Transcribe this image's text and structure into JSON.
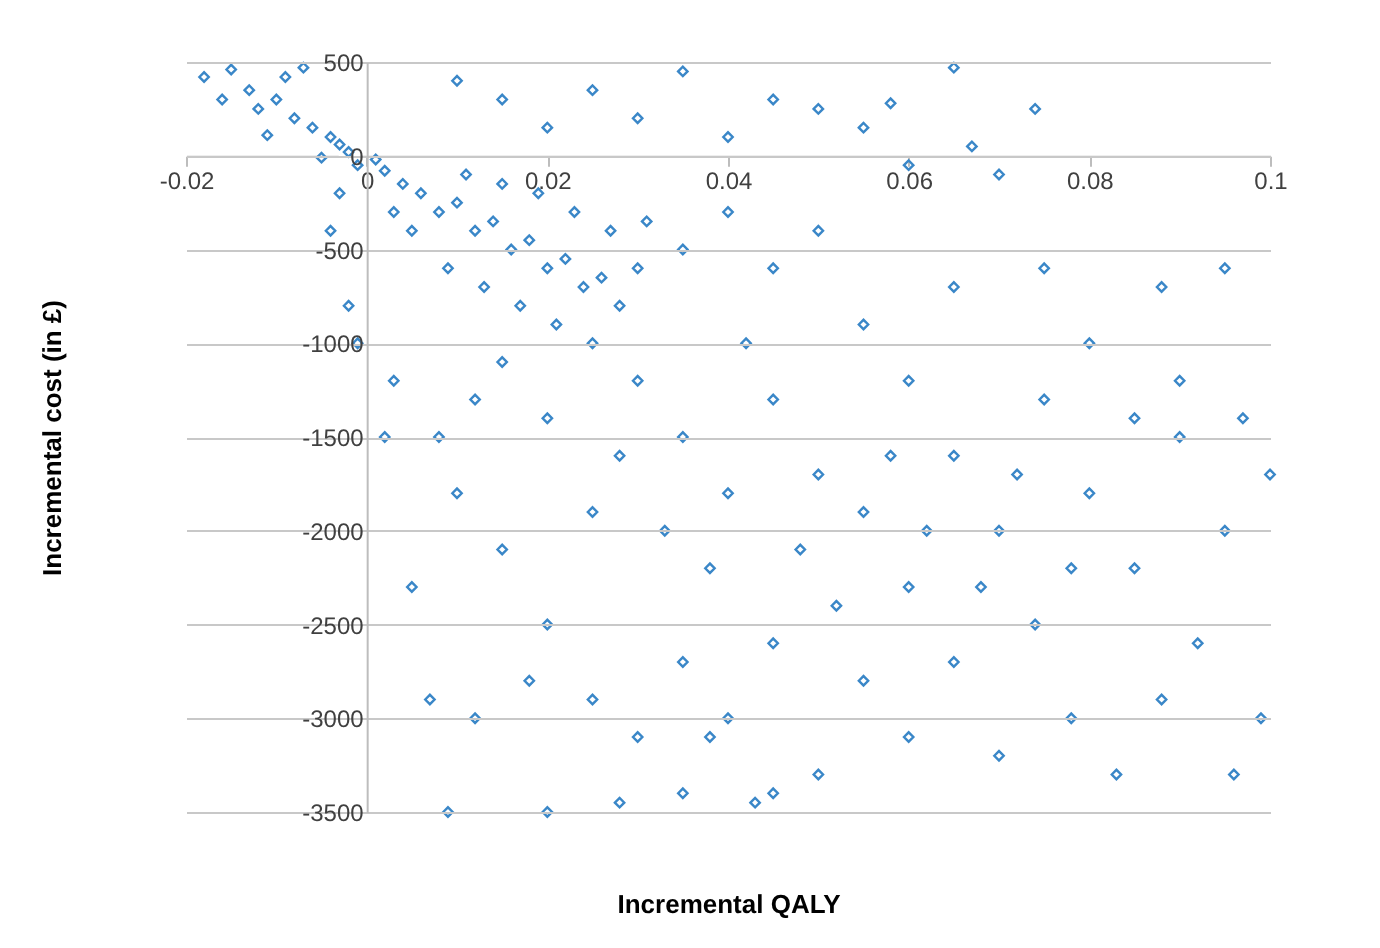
{
  "chart_data": {
    "type": "scatter",
    "xlabel": "Incremental QALY",
    "ylabel": "Incremental cost (in £)",
    "xlim": [
      -0.02,
      0.1
    ],
    "ylim": [
      -3500,
      500
    ],
    "xticks": [
      -0.02,
      0,
      0.02,
      0.04,
      0.06,
      0.08,
      0.1
    ],
    "yticks": [
      -3500,
      -3000,
      -2500,
      -2000,
      -1500,
      -1000,
      -500,
      0,
      500
    ],
    "grid": "y",
    "marker": "diamond",
    "series": [
      {
        "color": "#3a87c8",
        "x": [
          -0.018,
          -0.015,
          -0.013,
          -0.012,
          -0.01,
          -0.008,
          -0.006,
          -0.004,
          -0.003,
          -0.002,
          -0.009,
          -0.016,
          -0.005,
          -0.011,
          -0.001,
          -0.003,
          -0.007,
          0.001,
          0.002,
          0.004,
          0.006,
          0.008,
          0.01,
          0.012,
          0.014,
          0.016,
          0.018,
          0.02,
          0.022,
          0.024,
          0.026,
          0.028,
          0.03,
          0.005,
          0.009,
          0.013,
          0.017,
          0.021,
          0.025,
          0.003,
          0.011,
          0.015,
          0.019,
          0.023,
          0.027,
          0.031,
          0.035,
          0.04,
          0.045,
          0.05,
          0.01,
          0.015,
          0.02,
          0.025,
          0.03,
          0.035,
          0.04,
          0.045,
          0.05,
          0.055,
          0.06,
          0.065,
          0.067,
          0.074,
          0.07,
          0.058,
          0.065,
          0.075,
          0.08,
          0.088,
          0.095,
          0.09,
          0.085,
          0.097,
          0.1,
          0.095,
          0.092,
          0.099,
          0.096,
          0.088,
          0.083,
          0.078,
          0.074,
          0.07,
          0.065,
          0.06,
          0.055,
          0.08,
          0.085,
          0.09,
          0.075,
          0.07,
          0.03,
          0.035,
          0.04,
          0.045,
          0.05,
          0.033,
          0.038,
          0.028,
          0.02,
          0.015,
          0.012,
          0.042,
          0.048,
          0.055,
          0.06,
          0.025,
          0.045,
          0.035,
          0.055,
          0.065,
          0.04,
          0.03,
          0.05,
          0.06,
          0.045,
          0.02,
          0.015,
          0.01,
          0.008,
          0.005,
          0.007,
          0.012,
          0.009,
          0.02,
          0.028,
          0.035,
          0.043,
          0.038,
          0.025,
          0.018,
          0.052,
          0.058,
          0.062,
          0.068,
          0.072,
          0.078,
          -0.002,
          -0.001,
          0.002,
          0.003,
          -0.004
        ],
        "values": [
          420,
          460,
          350,
          250,
          300,
          200,
          150,
          100,
          60,
          20,
          420,
          300,
          -10,
          110,
          -50,
          -200,
          470,
          -20,
          -80,
          -150,
          -200,
          -300,
          -250,
          -400,
          -350,
          -500,
          -450,
          -600,
          -550,
          -700,
          -650,
          -800,
          -600,
          -400,
          -600,
          -700,
          -800,
          -900,
          -1000,
          -300,
          -100,
          -150,
          -200,
          -300,
          -400,
          -350,
          -500,
          -300,
          -600,
          -400,
          400,
          300,
          150,
          350,
          200,
          450,
          100,
          300,
          250,
          150,
          -50,
          470,
          50,
          250,
          -100,
          280,
          -700,
          -600,
          -1000,
          -700,
          -600,
          -1200,
          -1400,
          -1400,
          -1700,
          -2000,
          -2600,
          -3000,
          -3300,
          -2900,
          -3300,
          -3000,
          -2500,
          -2000,
          -1600,
          -1200,
          -900,
          -1800,
          -2200,
          -1500,
          -1300,
          -3200,
          -1200,
          -1500,
          -1800,
          -1300,
          -1700,
          -2000,
          -2200,
          -1600,
          -1400,
          -1100,
          -1300,
          -1000,
          -2100,
          -1900,
          -2300,
          -1900,
          -2600,
          -2700,
          -2800,
          -2700,
          -3000,
          -3100,
          -3300,
          -3100,
          -3400,
          -2500,
          -2100,
          -1800,
          -1500,
          -2300,
          -2900,
          -3000,
          -3500,
          -3500,
          -3450,
          -3400,
          -3450,
          -3100,
          -2900,
          -2800,
          -2400,
          -1600,
          -2000,
          -2300,
          -1700,
          -2200,
          -800,
          -1000,
          -1500,
          -1200,
          -400
        ]
      }
    ]
  }
}
